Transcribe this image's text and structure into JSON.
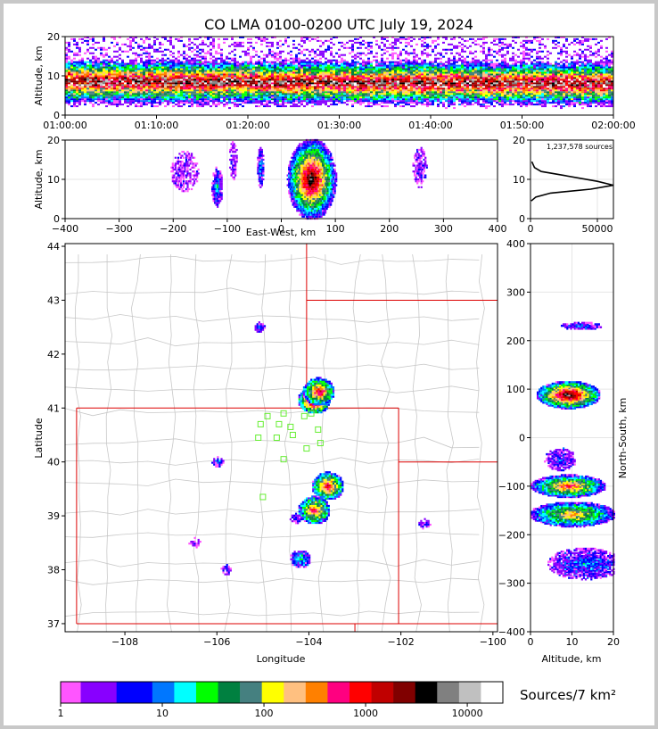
{
  "title": "CO LMA 0100-0200 UTC July 19, 2024",
  "colors": {
    "ramp": [
      "#ff55ff",
      "#8800ff",
      "#0000ff",
      "#0077ff",
      "#00ffff",
      "#00ff00",
      "#008040",
      "#458080",
      "#ffff00",
      "#ffc080",
      "#ff8000",
      "#ff0080",
      "#ff0000",
      "#c00000",
      "#800000",
      "#000000",
      "#808080",
      "#c0c0c0",
      "#ffffff"
    ],
    "state_border": "#dd0000",
    "county_border": "#c8c8c8",
    "network_station": "#66ee33"
  },
  "time_panel": {
    "ylabel": "Altitude, km",
    "yticks": [
      "0",
      "10",
      "20"
    ],
    "xticks": [
      "01:00:00",
      "01:10:00",
      "01:20:00",
      "01:30:00",
      "01:40:00",
      "01:50:00",
      "02:00:00"
    ]
  },
  "ew_panel": {
    "ylabel": "Altitude, km",
    "xlabel": "East-West, km",
    "xticks": [
      "−400",
      "−300",
      "−200",
      "−100",
      "0",
      "100",
      "200",
      "300",
      "400"
    ],
    "yticks": [
      "0",
      "10",
      "20"
    ]
  },
  "hist_panel": {
    "annotation": "1,237,578 sources",
    "xticks": [
      "0",
      "50000"
    ],
    "yticks": [
      "0",
      "10",
      "20"
    ]
  },
  "map_panel": {
    "xlabel": "Longitude",
    "ylabel": "Latitude",
    "xticks": [
      "−108",
      "−106",
      "−104",
      "−102",
      "−100"
    ],
    "yticks": [
      "37",
      "38",
      "39",
      "40",
      "41",
      "42",
      "43",
      "44"
    ]
  },
  "ns_panel": {
    "ylabel": "North-South, km",
    "xlabel": "Altitude, km",
    "yticks": [
      "−400",
      "−300",
      "−200",
      "−100",
      "0",
      "100",
      "200",
      "300",
      "400"
    ],
    "xticks": [
      "0",
      "10",
      "20"
    ]
  },
  "colorbar": {
    "label": "Sources/7 km²",
    "ticks": [
      "1",
      "10",
      "100",
      "1000",
      "10000"
    ]
  },
  "chart_data": [
    {
      "type": "heatmap",
      "name": "altitude-vs-time",
      "xlabel": "",
      "ylabel": "Altitude, km",
      "xlim": [
        "01:00:00",
        "02:00:00"
      ],
      "ylim": [
        0,
        20
      ],
      "note": "Dense band of sources centered near 8-9 km altitude throughout the hour, sparse sources up to ~20 km"
    },
    {
      "type": "heatmap",
      "name": "altitude-vs-east-west",
      "xlabel": "East-West, km",
      "ylabel": "Altitude, km",
      "xlim": [
        -400,
        400
      ],
      "ylim": [
        0,
        20
      ],
      "cells": [
        {
          "x": 40,
          "y": 10,
          "level": 17
        },
        {
          "x": 60,
          "y": 10,
          "level": 13
        },
        {
          "x": 90,
          "y": 10,
          "level": 9
        },
        {
          "x": -120,
          "y": 8,
          "level": 4
        },
        {
          "x": -40,
          "y": 13,
          "level": 4
        },
        {
          "x": -90,
          "y": 15,
          "level": 1
        },
        {
          "x": 255,
          "y": 14,
          "level": 1
        }
      ]
    },
    {
      "type": "line",
      "name": "altitude-histogram",
      "xlim": [
        0,
        62000
      ],
      "ylim": [
        0,
        20
      ],
      "points": [
        {
          "x": 1000,
          "y": 14.5
        },
        {
          "x": 3000,
          "y": 13
        },
        {
          "x": 8000,
          "y": 12
        },
        {
          "x": 25000,
          "y": 11
        },
        {
          "x": 50000,
          "y": 9.5
        },
        {
          "x": 62000,
          "y": 8.5
        },
        {
          "x": 45000,
          "y": 7.5
        },
        {
          "x": 15000,
          "y": 6.5
        },
        {
          "x": 4000,
          "y": 5.5
        },
        {
          "x": 500,
          "y": 4.5
        }
      ]
    },
    {
      "type": "heatmap",
      "name": "source-density-map",
      "xlabel": "Longitude",
      "ylabel": "Latitude",
      "xlim": [
        -109.3,
        -99.9
      ],
      "ylim": [
        36.85,
        44.05
      ],
      "cells": [
        {
          "lon": -103.9,
          "lat": 41.15,
          "level": 17
        },
        {
          "lon": -103.8,
          "lat": 41.3,
          "level": 13
        },
        {
          "lon": -103.6,
          "lat": 39.55,
          "level": 13
        },
        {
          "lon": -103.9,
          "lat": 39.1,
          "level": 12
        },
        {
          "lon": -104.2,
          "lat": 38.2,
          "level": 5
        },
        {
          "lon": -104.3,
          "lat": 38.95,
          "level": 3
        },
        {
          "lon": -105.1,
          "lat": 42.5,
          "level": 3
        },
        {
          "lon": -106.0,
          "lat": 40.0,
          "level": 3
        },
        {
          "lon": -101.5,
          "lat": 38.85,
          "level": 2
        },
        {
          "lon": -105.8,
          "lat": 38.0,
          "level": 2
        },
        {
          "lon": -106.5,
          "lat": 38.5,
          "level": 1
        }
      ],
      "stations": [
        {
          "lon": -104.9,
          "lat": 40.85
        },
        {
          "lon": -104.55,
          "lat": 40.9
        },
        {
          "lon": -104.1,
          "lat": 40.85
        },
        {
          "lon": -103.95,
          "lat": 40.9
        },
        {
          "lon": -105.05,
          "lat": 40.7
        },
        {
          "lon": -104.65,
          "lat": 40.7
        },
        {
          "lon": -104.4,
          "lat": 40.65
        },
        {
          "lon": -103.8,
          "lat": 40.6
        },
        {
          "lon": -105.1,
          "lat": 40.45
        },
        {
          "lon": -104.7,
          "lat": 40.45
        },
        {
          "lon": -104.35,
          "lat": 40.5
        },
        {
          "lon": -103.75,
          "lat": 40.35
        },
        {
          "lon": -104.05,
          "lat": 40.25
        },
        {
          "lon": -104.55,
          "lat": 40.05
        },
        {
          "lon": -105.0,
          "lat": 39.35
        }
      ]
    },
    {
      "type": "heatmap",
      "name": "north-south-vs-altitude",
      "xlabel": "Altitude, km",
      "ylabel": "North-South, km",
      "xlim": [
        0,
        20
      ],
      "ylim": [
        -400,
        400
      ],
      "cells": [
        {
          "x": 9,
          "y": 90,
          "level": 17
        },
        {
          "x": 9,
          "y": -100,
          "level": 12
        },
        {
          "x": 10,
          "y": -155,
          "level": 10
        },
        {
          "x": 12,
          "y": 230,
          "level": 3
        },
        {
          "x": 13,
          "y": -260,
          "level": 3
        },
        {
          "x": 7,
          "y": -40,
          "level": 2
        }
      ]
    }
  ]
}
